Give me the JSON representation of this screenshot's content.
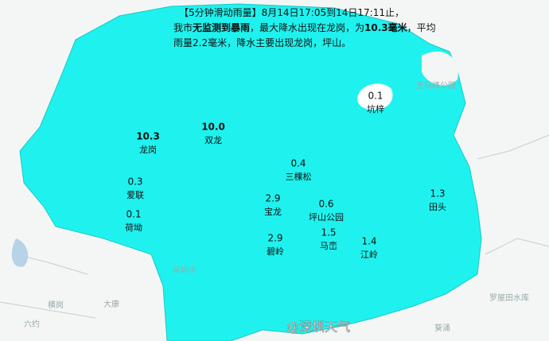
{
  "header": {
    "lines": [
      [
        {
          "text": "【5分钟滑动雨量】8月14日17:05到14日17:11止，",
          "bold": false
        }
      ],
      [
        {
          "text": "我市",
          "bold": false
        },
        {
          "text": "无监测到暴雨",
          "bold": true
        },
        {
          "text": "，最大降水出现在龙岗，为",
          "bold": false
        },
        {
          "text": "10.3毫米",
          "bold": true
        },
        {
          "text": "，平均",
          "bold": false
        }
      ],
      [
        {
          "text": "雨量2.2毫米，降水主要出现龙岗，坪山。",
          "bold": false
        }
      ]
    ]
  },
  "stations": [
    {
      "value": "10.3",
      "name": "龙岗",
      "bold": true
    },
    {
      "value": "10.0",
      "name": "双龙",
      "bold": true
    },
    {
      "value": "0.1",
      "name": "坑梓",
      "bold": false
    },
    {
      "value": "0.4",
      "name": "三棵松",
      "bold": false
    },
    {
      "value": "0.3",
      "name": "爱联",
      "bold": false
    },
    {
      "value": "0.1",
      "name": "荷坳",
      "bold": false
    },
    {
      "value": "2.9",
      "name": "宝龙",
      "bold": false
    },
    {
      "value": "0.6",
      "name": "坪山公园",
      "bold": false
    },
    {
      "value": "1.3",
      "name": "田头",
      "bold": false
    },
    {
      "value": "2.9",
      "name": "碧岭",
      "bold": false
    },
    {
      "value": "1.5",
      "name": "马峦",
      "bold": false
    },
    {
      "value": "1.4",
      "name": "江岭",
      "bold": false
    }
  ],
  "places": [
    "五马峰公园",
    "深圳市",
    "罗屋田水库",
    "葵涌",
    "大康",
    "六约",
    "横岗"
  ],
  "watermark": "@深圳天气"
}
